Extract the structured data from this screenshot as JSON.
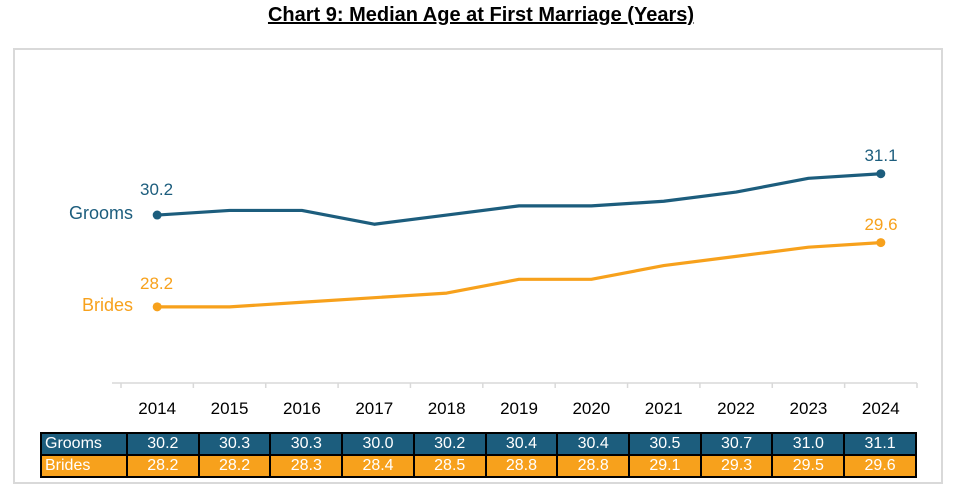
{
  "title": "Chart 9: Median Age at First Marriage (Years)",
  "colors": {
    "grooms": "#1c5d7d",
    "brides": "#f7a11c",
    "axis_line": "#d9d9d9",
    "chart_border": "#d9d9d9",
    "table_border": "#000000",
    "table_text": "#ffffff",
    "title_text": "#000000"
  },
  "chart_data": {
    "type": "line",
    "title": "Chart 9: Median Age at First Marriage (Years)",
    "categories": [
      "2014",
      "2015",
      "2016",
      "2017",
      "2018",
      "2019",
      "2020",
      "2021",
      "2022",
      "2023",
      "2024"
    ],
    "series": [
      {
        "name": "Grooms",
        "color": "#1c5d7d",
        "values": [
          30.2,
          30.3,
          30.3,
          30.0,
          30.2,
          30.4,
          30.4,
          30.5,
          30.7,
          31.0,
          31.1
        ],
        "display": [
          "30.2",
          "30.3",
          "30.3",
          "30.0",
          "30.2",
          "30.4",
          "30.4",
          "30.5",
          "30.7",
          "31.0",
          "31.1"
        ]
      },
      {
        "name": "Brides",
        "color": "#f7a11c",
        "values": [
          28.2,
          28.2,
          28.3,
          28.4,
          28.5,
          28.8,
          28.8,
          29.1,
          29.3,
          29.5,
          29.6
        ],
        "display": [
          "28.2",
          "28.2",
          "28.3",
          "28.4",
          "28.5",
          "28.8",
          "28.8",
          "29.1",
          "29.3",
          "29.5",
          "29.6"
        ]
      }
    ],
    "xlabel": "",
    "ylabel": "",
    "ylim": [
      27.5,
      31.9
    ],
    "grid": false,
    "markers": "first-and-last-points-only",
    "legend_position": "series-labels-left-of-first-points",
    "data_labels": "first-and-last-points-only"
  },
  "table": {
    "columns": [
      "2014",
      "2015",
      "2016",
      "2017",
      "2018",
      "2019",
      "2020",
      "2021",
      "2022",
      "2023",
      "2024"
    ],
    "rows": [
      {
        "label": "Grooms",
        "bg": "#1c5d7d",
        "values": [
          "30.2",
          "30.3",
          "30.3",
          "30.0",
          "30.2",
          "30.4",
          "30.4",
          "30.5",
          "30.7",
          "31.0",
          "31.1"
        ]
      },
      {
        "label": "Brides",
        "bg": "#f7a11c",
        "values": [
          "28.2",
          "28.2",
          "28.3",
          "28.4",
          "28.5",
          "28.8",
          "28.8",
          "29.1",
          "29.3",
          "29.5",
          "29.6"
        ]
      }
    ]
  }
}
